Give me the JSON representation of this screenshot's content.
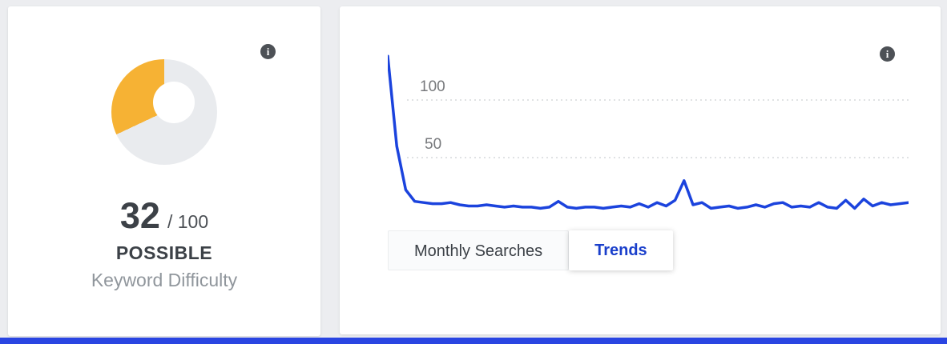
{
  "page": {
    "background_color": "#ecedf0",
    "bottom_bar_color": "#2a45e2"
  },
  "icons": {
    "info_glyph": "i"
  },
  "difficulty_card": {
    "score": "32",
    "denominator": "/ 100",
    "label": "POSSIBLE",
    "sublabel": "Keyword Difficulty",
    "gauge": {
      "percent": 32,
      "fill_color": "#f6b234",
      "track_color": "#e9ebee"
    }
  },
  "trends_card": {
    "y_ticks": [
      "100",
      "50"
    ],
    "tabs": [
      {
        "label": "Monthly Searches",
        "active": false
      },
      {
        "label": "Trends",
        "active": true
      }
    ]
  },
  "chart_data": {
    "type": "line",
    "title": "Trends",
    "y_ticks": [
      100,
      50
    ],
    "ylim": [
      0,
      140
    ],
    "grid": "dashed horizontal lines at y ticks",
    "legend": "none",
    "line_color": "#1b43dd",
    "values": [
      138,
      60,
      22,
      12,
      11,
      10,
      10,
      11,
      9,
      8,
      8,
      9,
      8,
      7,
      8,
      7,
      7,
      6,
      7,
      12,
      7,
      6,
      7,
      7,
      6,
      7,
      8,
      7,
      10,
      7,
      11,
      8,
      13,
      30,
      9,
      11,
      6,
      7,
      8,
      6,
      7,
      9,
      7,
      10,
      11,
      7,
      8,
      7,
      11,
      7,
      6,
      13,
      6,
      14,
      8,
      11,
      9,
      10,
      11
    ]
  }
}
